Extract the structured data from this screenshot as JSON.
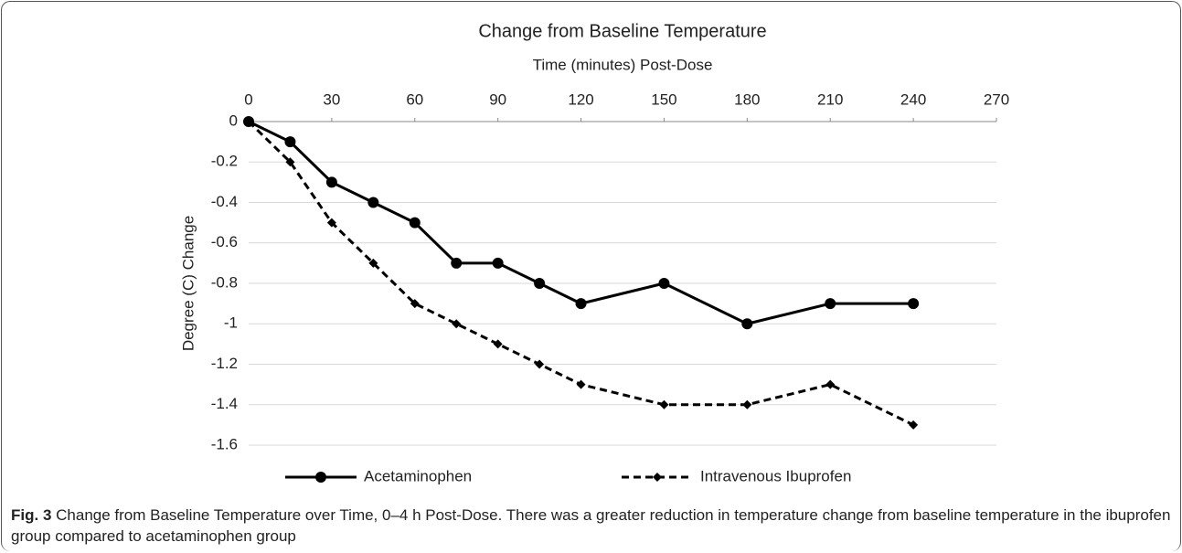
{
  "chart_data": {
    "type": "line",
    "title": "Change from Baseline Temperature",
    "xlabel": "Time (minutes) Post-Dose",
    "ylabel": "Degree (C) Change",
    "x": [
      0,
      15,
      30,
      45,
      60,
      75,
      90,
      105,
      120,
      150,
      180,
      210,
      240
    ],
    "series": [
      {
        "name": "Acetaminophen",
        "color": "#000000",
        "line_style": "solid",
        "marker": "circle",
        "values": [
          0,
          -0.1,
          -0.3,
          -0.4,
          -0.5,
          -0.7,
          -0.7,
          -0.8,
          -0.9,
          -0.8,
          -1.0,
          -0.9,
          -0.9
        ]
      },
      {
        "name": "Intravenous Ibuprofen",
        "color": "#000000",
        "line_style": "dashed",
        "marker": "diamond",
        "values": [
          0,
          -0.2,
          -0.5,
          -0.7,
          -0.9,
          -1.0,
          -1.1,
          -1.2,
          -1.3,
          -1.4,
          -1.4,
          -1.3,
          -1.5
        ]
      }
    ],
    "xlim": [
      0,
      270
    ],
    "xticks": [
      0,
      30,
      60,
      90,
      120,
      150,
      180,
      210,
      240,
      270
    ],
    "ylim": [
      -1.6,
      0
    ],
    "yticks": [
      0,
      -0.2,
      -0.4,
      -0.6,
      -0.8,
      -1,
      -1.2,
      -1.4,
      -1.6
    ],
    "grid": true,
    "legend": "bottom"
  },
  "caption": {
    "label": "Fig. 3",
    "text": "Change from Baseline Temperature over Time, 0–4 h Post-Dose. There was a greater reduction in temperature change from baseline temperature in the ibuprofen group compared to acetaminophen group"
  }
}
